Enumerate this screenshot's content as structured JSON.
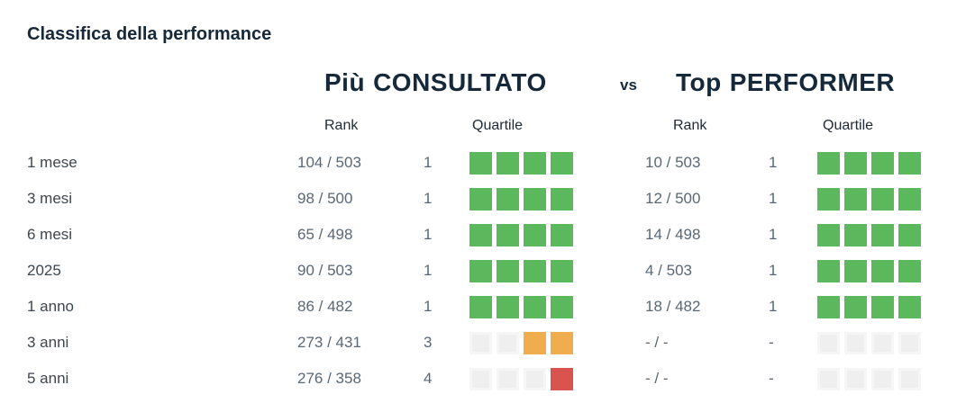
{
  "title": "Classifica della performance",
  "header": {
    "left_title_bold": "Più",
    "left_title_rest": "CONSULTATO",
    "vs": "vs",
    "right_title_bold": "Top",
    "right_title_rest": "PERFORMER",
    "rank_label": "Rank",
    "quartile_label": "Quartile"
  },
  "colors": {
    "title_navy": "#15293b",
    "quartile_green": "#5cb85c",
    "quartile_orange": "#f0ad4e",
    "quartile_red": "#d9534f",
    "quartile_empty": "#efeff0"
  },
  "rows": [
    {
      "period": "1 mese",
      "consultato": {
        "rank": "104 / 503",
        "quartile": "1",
        "squares": [
          "green",
          "green",
          "green",
          "green"
        ]
      },
      "top_performer": {
        "rank": "10 / 503",
        "quartile": "1",
        "squares": [
          "green",
          "green",
          "green",
          "green"
        ]
      }
    },
    {
      "period": "3 mesi",
      "consultato": {
        "rank": "98 / 500",
        "quartile": "1",
        "squares": [
          "green",
          "green",
          "green",
          "green"
        ]
      },
      "top_performer": {
        "rank": "12 / 500",
        "quartile": "1",
        "squares": [
          "green",
          "green",
          "green",
          "green"
        ]
      }
    },
    {
      "period": "6 mesi",
      "consultato": {
        "rank": "65 / 498",
        "quartile": "1",
        "squares": [
          "green",
          "green",
          "green",
          "green"
        ]
      },
      "top_performer": {
        "rank": "14 / 498",
        "quartile": "1",
        "squares": [
          "green",
          "green",
          "green",
          "green"
        ]
      }
    },
    {
      "period": "2025",
      "consultato": {
        "rank": "90 / 503",
        "quartile": "1",
        "squares": [
          "green",
          "green",
          "green",
          "green"
        ]
      },
      "top_performer": {
        "rank": "4 / 503",
        "quartile": "1",
        "squares": [
          "green",
          "green",
          "green",
          "green"
        ]
      }
    },
    {
      "period": "1 anno",
      "consultato": {
        "rank": "86 / 482",
        "quartile": "1",
        "squares": [
          "green",
          "green",
          "green",
          "green"
        ]
      },
      "top_performer": {
        "rank": "18 / 482",
        "quartile": "1",
        "squares": [
          "green",
          "green",
          "green",
          "green"
        ]
      }
    },
    {
      "period": "3 anni",
      "consultato": {
        "rank": "273 / 431",
        "quartile": "3",
        "squares": [
          "gray",
          "gray",
          "orange",
          "orange"
        ]
      },
      "top_performer": {
        "rank": "- / -",
        "quartile": "-",
        "squares": [
          "gray",
          "gray",
          "gray",
          "gray"
        ]
      }
    },
    {
      "period": "5 anni",
      "consultato": {
        "rank": "276 / 358",
        "quartile": "4",
        "squares": [
          "gray",
          "gray",
          "gray",
          "red"
        ]
      },
      "top_performer": {
        "rank": "- / -",
        "quartile": "-",
        "squares": [
          "gray",
          "gray",
          "gray",
          "gray"
        ]
      }
    }
  ]
}
